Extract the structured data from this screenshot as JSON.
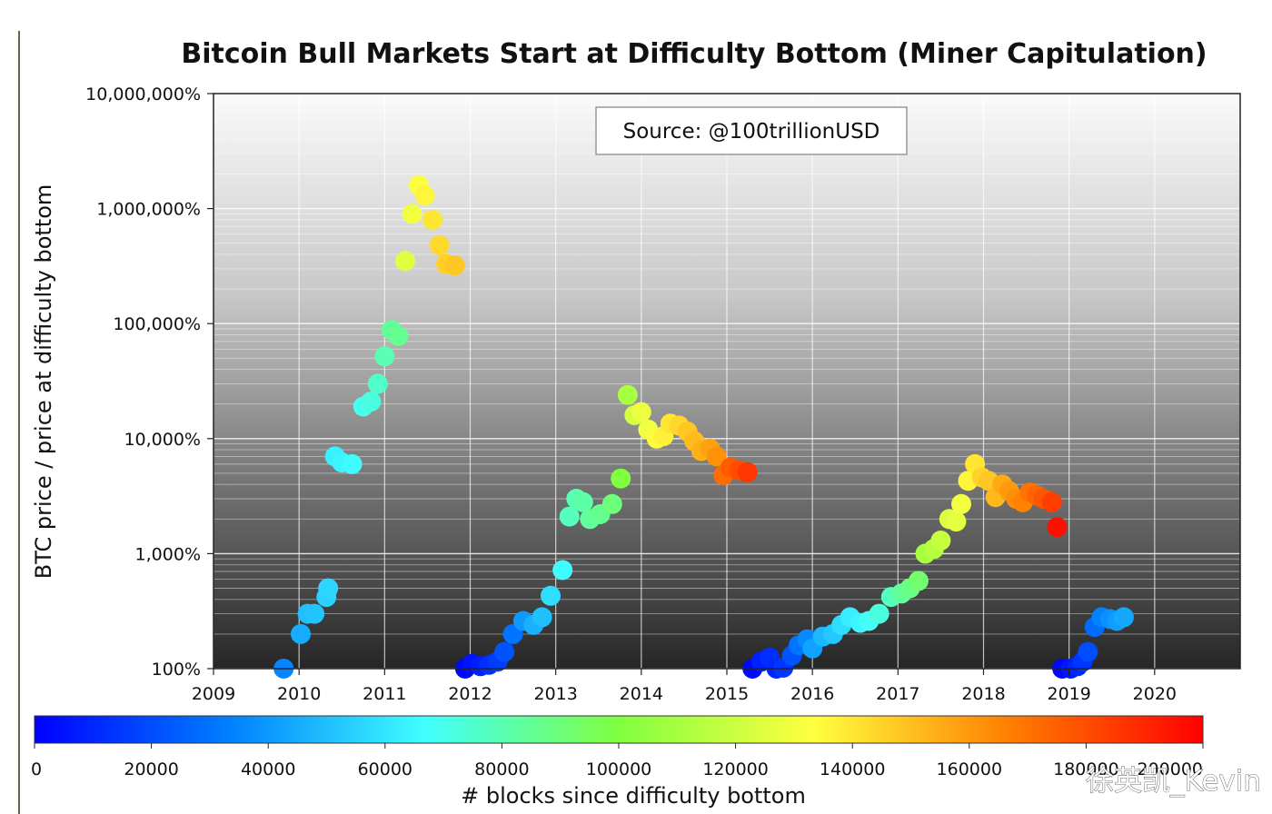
{
  "chart_data": {
    "type": "scatter",
    "title": "Bitcoin Bull Markets Start at Difficulty Bottom (Miner Capitulation)",
    "ylabel": "BTC price / price at difficulty bottom",
    "yscale": "log",
    "ylim": [
      100,
      10000000
    ],
    "yticks": [
      {
        "value": 100,
        "label": "100%"
      },
      {
        "value": 1000,
        "label": "1,000%"
      },
      {
        "value": 10000,
        "label": "10,000%"
      },
      {
        "value": 100000,
        "label": "100,000%"
      },
      {
        "value": 1000000,
        "label": "1,000,000%"
      },
      {
        "value": 10000000,
        "label": "10,000,000%"
      }
    ],
    "xlim": [
      2009,
      2020.99
    ],
    "xticks": [
      "2009",
      "2010",
      "2011",
      "2012",
      "2013",
      "2014",
      "2015",
      "2016",
      "2017",
      "2018",
      "2019",
      "2020"
    ],
    "grid": true,
    "annotation": "Source: @100trillionUSD",
    "colorbar": {
      "label": "# blocks since difficulty bottom",
      "min": 0,
      "max": 200000,
      "ticks": [
        "0",
        "20000",
        "40000",
        "60000",
        "80000",
        "100000",
        "120000",
        "140000",
        "160000",
        "180000",
        "200000"
      ],
      "colormap": [
        "#0000ff",
        "#0080ff",
        "#40ffff",
        "#80ff40",
        "#ffff40",
        "#ff8000",
        "#ff0000"
      ]
    },
    "points": [
      {
        "x": 2009.82,
        "y": 100,
        "blocks": 35000
      },
      {
        "x": 2010.02,
        "y": 200,
        "blocks": 45000
      },
      {
        "x": 2010.1,
        "y": 300,
        "blocks": 50000
      },
      {
        "x": 2010.18,
        "y": 300,
        "blocks": 51000
      },
      {
        "x": 2010.32,
        "y": 420,
        "blocks": 55000
      },
      {
        "x": 2010.34,
        "y": 500,
        "blocks": 56000
      },
      {
        "x": 2010.42,
        "y": 7000,
        "blocks": 63000
      },
      {
        "x": 2010.5,
        "y": 6200,
        "blocks": 64000
      },
      {
        "x": 2010.62,
        "y": 6000,
        "blocks": 66000
      },
      {
        "x": 2010.75,
        "y": 19000,
        "blocks": 70000
      },
      {
        "x": 2010.84,
        "y": 21000,
        "blocks": 72000
      },
      {
        "x": 2010.92,
        "y": 30000,
        "blocks": 76000
      },
      {
        "x": 2011.0,
        "y": 52000,
        "blocks": 80000
      },
      {
        "x": 2011.08,
        "y": 88000,
        "blocks": 84000
      },
      {
        "x": 2011.16,
        "y": 78000,
        "blocks": 86000
      },
      {
        "x": 2011.24,
        "y": 350000,
        "blocks": 125000
      },
      {
        "x": 2011.32,
        "y": 900000,
        "blocks": 130000
      },
      {
        "x": 2011.4,
        "y": 1600000,
        "blocks": 132000
      },
      {
        "x": 2011.47,
        "y": 1300000,
        "blocks": 136000
      },
      {
        "x": 2011.56,
        "y": 800000,
        "blocks": 140000
      },
      {
        "x": 2011.64,
        "y": 480000,
        "blocks": 143000
      },
      {
        "x": 2011.72,
        "y": 330000,
        "blocks": 146000
      },
      {
        "x": 2011.82,
        "y": 320000,
        "blocks": 148000
      },
      {
        "x": 2011.94,
        "y": 100,
        "blocks": 2000
      },
      {
        "x": 2012.02,
        "y": 110,
        "blocks": 5000
      },
      {
        "x": 2012.12,
        "y": 105,
        "blocks": 8000
      },
      {
        "x": 2012.22,
        "y": 108,
        "blocks": 12000
      },
      {
        "x": 2012.32,
        "y": 115,
        "blocks": 16000
      },
      {
        "x": 2012.4,
        "y": 140,
        "blocks": 22000
      },
      {
        "x": 2012.5,
        "y": 200,
        "blocks": 30000
      },
      {
        "x": 2012.62,
        "y": 260,
        "blocks": 40000
      },
      {
        "x": 2012.74,
        "y": 240,
        "blocks": 46000
      },
      {
        "x": 2012.84,
        "y": 280,
        "blocks": 50000
      },
      {
        "x": 2012.94,
        "y": 430,
        "blocks": 58000
      },
      {
        "x": 2013.08,
        "y": 720,
        "blocks": 66000
      },
      {
        "x": 2013.16,
        "y": 2100,
        "blocks": 78000
      },
      {
        "x": 2013.24,
        "y": 3000,
        "blocks": 80000
      },
      {
        "x": 2013.32,
        "y": 2800,
        "blocks": 82000
      },
      {
        "x": 2013.4,
        "y": 2000,
        "blocks": 84000
      },
      {
        "x": 2013.52,
        "y": 2200,
        "blocks": 86000
      },
      {
        "x": 2013.66,
        "y": 2700,
        "blocks": 90000
      },
      {
        "x": 2013.76,
        "y": 4500,
        "blocks": 100000
      },
      {
        "x": 2013.84,
        "y": 24000,
        "blocks": 110000
      },
      {
        "x": 2013.92,
        "y": 16000,
        "blocks": 122000
      },
      {
        "x": 2014.0,
        "y": 17000,
        "blocks": 128000
      },
      {
        "x": 2014.08,
        "y": 12000,
        "blocks": 130000
      },
      {
        "x": 2014.18,
        "y": 10000,
        "blocks": 134000
      },
      {
        "x": 2014.26,
        "y": 10500,
        "blocks": 137000
      },
      {
        "x": 2014.34,
        "y": 13500,
        "blocks": 140000
      },
      {
        "x": 2014.44,
        "y": 13000,
        "blocks": 144000
      },
      {
        "x": 2014.54,
        "y": 11500,
        "blocks": 148000
      },
      {
        "x": 2014.62,
        "y": 9500,
        "blocks": 151000
      },
      {
        "x": 2014.7,
        "y": 7800,
        "blocks": 154000
      },
      {
        "x": 2014.8,
        "y": 8200,
        "blocks": 158000
      },
      {
        "x": 2014.88,
        "y": 7000,
        "blocks": 162000
      },
      {
        "x": 2014.96,
        "y": 4800,
        "blocks": 172000
      },
      {
        "x": 2015.04,
        "y": 5600,
        "blocks": 176000
      },
      {
        "x": 2015.14,
        "y": 5300,
        "blocks": 180000
      },
      {
        "x": 2015.24,
        "y": 5100,
        "blocks": 186000
      },
      {
        "x": 2015.3,
        "y": 100,
        "blocks": 2000
      },
      {
        "x": 2015.4,
        "y": 115,
        "blocks": 8000
      },
      {
        "x": 2015.5,
        "y": 125,
        "blocks": 12000
      },
      {
        "x": 2015.58,
        "y": 100,
        "blocks": 10000
      },
      {
        "x": 2015.66,
        "y": 102,
        "blocks": 14000
      },
      {
        "x": 2015.76,
        "y": 130,
        "blocks": 22000
      },
      {
        "x": 2015.84,
        "y": 160,
        "blocks": 30000
      },
      {
        "x": 2015.94,
        "y": 180,
        "blocks": 36000
      },
      {
        "x": 2016.0,
        "y": 150,
        "blocks": 42000
      },
      {
        "x": 2016.12,
        "y": 190,
        "blocks": 48000
      },
      {
        "x": 2016.24,
        "y": 200,
        "blocks": 52000
      },
      {
        "x": 2016.34,
        "y": 240,
        "blocks": 58000
      },
      {
        "x": 2016.44,
        "y": 280,
        "blocks": 62000
      },
      {
        "x": 2016.56,
        "y": 250,
        "blocks": 64000
      },
      {
        "x": 2016.66,
        "y": 260,
        "blocks": 68000
      },
      {
        "x": 2016.78,
        "y": 300,
        "blocks": 72000
      },
      {
        "x": 2016.92,
        "y": 420,
        "blocks": 78000
      },
      {
        "x": 2017.04,
        "y": 450,
        "blocks": 84000
      },
      {
        "x": 2017.14,
        "y": 500,
        "blocks": 88000
      },
      {
        "x": 2017.24,
        "y": 580,
        "blocks": 92000
      },
      {
        "x": 2017.32,
        "y": 1000,
        "blocks": 110000
      },
      {
        "x": 2017.42,
        "y": 1100,
        "blocks": 114000
      },
      {
        "x": 2017.5,
        "y": 1300,
        "blocks": 118000
      },
      {
        "x": 2017.6,
        "y": 2000,
        "blocks": 124000
      },
      {
        "x": 2017.68,
        "y": 1900,
        "blocks": 126000
      },
      {
        "x": 2017.74,
        "y": 2700,
        "blocks": 130000
      },
      {
        "x": 2017.82,
        "y": 4300,
        "blocks": 136000
      },
      {
        "x": 2017.9,
        "y": 6000,
        "blocks": 140000
      },
      {
        "x": 2017.98,
        "y": 4600,
        "blocks": 145000
      },
      {
        "x": 2018.06,
        "y": 4300,
        "blocks": 148000
      },
      {
        "x": 2018.14,
        "y": 3100,
        "blocks": 152000
      },
      {
        "x": 2018.22,
        "y": 4000,
        "blocks": 156000
      },
      {
        "x": 2018.3,
        "y": 3500,
        "blocks": 160000
      },
      {
        "x": 2018.38,
        "y": 3000,
        "blocks": 163000
      },
      {
        "x": 2018.46,
        "y": 2800,
        "blocks": 166000
      },
      {
        "x": 2018.54,
        "y": 3400,
        "blocks": 170000
      },
      {
        "x": 2018.62,
        "y": 3200,
        "blocks": 174000
      },
      {
        "x": 2018.7,
        "y": 3000,
        "blocks": 178000
      },
      {
        "x": 2018.8,
        "y": 2800,
        "blocks": 184000
      },
      {
        "x": 2018.86,
        "y": 1700,
        "blocks": 196000
      },
      {
        "x": 2018.92,
        "y": 100,
        "blocks": 2000
      },
      {
        "x": 2019.02,
        "y": 100,
        "blocks": 6000
      },
      {
        "x": 2019.1,
        "y": 105,
        "blocks": 10000
      },
      {
        "x": 2019.16,
        "y": 115,
        "blocks": 14000
      },
      {
        "x": 2019.22,
        "y": 140,
        "blocks": 20000
      },
      {
        "x": 2019.3,
        "y": 230,
        "blocks": 28000
      },
      {
        "x": 2019.38,
        "y": 280,
        "blocks": 34000
      },
      {
        "x": 2019.48,
        "y": 270,
        "blocks": 38000
      },
      {
        "x": 2019.56,
        "y": 260,
        "blocks": 41000
      },
      {
        "x": 2019.64,
        "y": 280,
        "blocks": 44000
      }
    ]
  },
  "watermark": "徐英凯_Kevin"
}
